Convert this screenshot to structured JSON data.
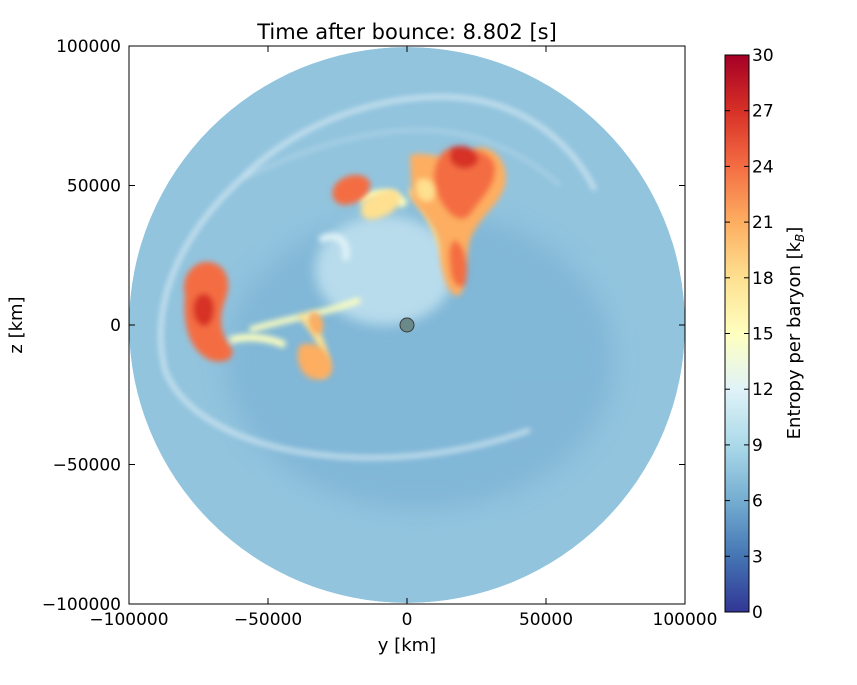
{
  "chart_data": {
    "type": "heatmap",
    "title": "Time after bounce: 8.802 [s]",
    "xlabel": "y [km]",
    "ylabel": "z [km]",
    "xlim": [
      -100000,
      100000
    ],
    "ylim": [
      -100000,
      100000
    ],
    "x_ticks": [
      {
        "value": -100000,
        "label": "−100000"
      },
      {
        "value": -50000,
        "label": "−50000"
      },
      {
        "value": 0,
        "label": "0"
      },
      {
        "value": 50000,
        "label": "50000"
      },
      {
        "value": 100000,
        "label": "100000"
      }
    ],
    "y_ticks": [
      {
        "value": -100000,
        "label": "−100000"
      },
      {
        "value": -50000,
        "label": "−50000"
      },
      {
        "value": 0,
        "label": "0"
      },
      {
        "value": 50000,
        "label": "50000"
      },
      {
        "value": 100000,
        "label": "100000"
      }
    ],
    "colorbar": {
      "label": "Entropy per baryon [k",
      "label_subscript": "B",
      "label_suffix": "]",
      "range": [
        0,
        30
      ],
      "ticks": [
        {
          "value": 0,
          "label": "0"
        },
        {
          "value": 3,
          "label": "3"
        },
        {
          "value": 6,
          "label": "6"
        },
        {
          "value": 9,
          "label": "9"
        },
        {
          "value": 12,
          "label": "12"
        },
        {
          "value": 15,
          "label": "15"
        },
        {
          "value": 18,
          "label": "18"
        },
        {
          "value": 21,
          "label": "21"
        },
        {
          "value": 24,
          "label": "24"
        },
        {
          "value": 27,
          "label": "27"
        },
        {
          "value": 30,
          "label": "30"
        }
      ],
      "colormap": "RdYlBu_r"
    },
    "grid": false,
    "domain_radius_km": 100000,
    "background_entropy": 7.5,
    "shock_front_entropy": 9,
    "features": [
      {
        "name": "upper-right hot plume",
        "entropy": 26,
        "cx": 22000,
        "cz": 45000
      },
      {
        "name": "upper-right outer plume",
        "entropy": 24,
        "cx": 27000,
        "cz": 20000
      },
      {
        "name": "left lobe",
        "entropy": 23,
        "cx": -71000,
        "cz": 8000
      },
      {
        "name": "upper-left blob",
        "entropy": 22,
        "cx": -21000,
        "cz": 48000
      },
      {
        "name": "central filaments",
        "entropy": 17,
        "cx": -12000,
        "cz": 15000
      },
      {
        "name": "compact remnant",
        "entropy": 6,
        "cx": 0,
        "cz": 0
      }
    ]
  }
}
